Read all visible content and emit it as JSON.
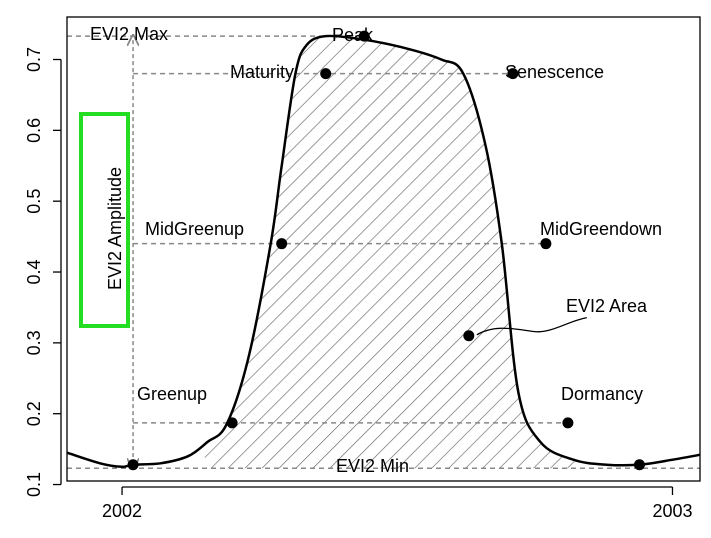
{
  "chart_data": {
    "type": "line",
    "title": "",
    "xlabel": "",
    "ylabel": "",
    "xlim": [
      2001.9,
      2003.05
    ],
    "ylim": [
      0.105,
      0.76
    ],
    "x_ticks": [
      {
        "value": 2002.0,
        "label": "2002"
      },
      {
        "value": 2003.0,
        "label": "2003"
      }
    ],
    "y_ticks": [
      {
        "value": 0.1,
        "label": "0.1"
      },
      {
        "value": 0.2,
        "label": "0.2"
      },
      {
        "value": 0.3,
        "label": "0.3"
      },
      {
        "value": 0.4,
        "label": "0.4"
      },
      {
        "value": 0.5,
        "label": "0.5"
      },
      {
        "value": 0.6,
        "label": "0.6"
      },
      {
        "value": 0.7,
        "label": "0.7"
      }
    ],
    "grid": false,
    "series": [
      {
        "x": [
          2001.9,
          2001.96,
          2002.0,
          2002.02,
          2002.07,
          2002.12,
          2002.155,
          2002.19,
          2002.23,
          2002.27,
          2002.29,
          2002.315,
          2002.335,
          2002.37,
          2002.44,
          2002.52,
          2002.58,
          2002.62,
          2002.66,
          2002.69,
          2002.72,
          2002.76,
          2002.82,
          2002.88,
          2002.94,
          2003.0,
          2003.05
        ],
        "y": [
          0.145,
          0.13,
          0.125,
          0.128,
          0.13,
          0.14,
          0.16,
          0.185,
          0.28,
          0.44,
          0.55,
          0.68,
          0.72,
          0.733,
          0.728,
          0.715,
          0.7,
          0.68,
          0.58,
          0.44,
          0.23,
          0.16,
          0.135,
          0.128,
          0.128,
          0.135,
          0.142
        ]
      }
    ],
    "phenology_points": [
      {
        "name": "Greenup",
        "x": 2002.2,
        "y": 0.187
      },
      {
        "name": "MidGreenup",
        "x": 2002.29,
        "y": 0.44
      },
      {
        "name": "Maturity",
        "x": 2002.37,
        "y": 0.68
      },
      {
        "name": "Peak",
        "x": 2002.44,
        "y": 0.733
      },
      {
        "name": "Senescence",
        "x": 2002.71,
        "y": 0.68
      },
      {
        "name": "MidGreendown",
        "x": 2002.77,
        "y": 0.44
      },
      {
        "name": "Dormancy",
        "x": 2002.81,
        "y": 0.187
      },
      {
        "name": "EVI2 Min point",
        "x": 2002.02,
        "y": 0.128
      },
      {
        "name": "Dormancy end",
        "x": 2002.94,
        "y": 0.128
      }
    ],
    "guide_levels": {
      "max": 0.733,
      "maturity": 0.68,
      "mid": 0.44,
      "greenup": 0.187,
      "min": 0.123
    },
    "area_start_x": 2002.15,
    "area_end_x": 2002.83,
    "area_point": {
      "x": 2002.63,
      "y": 0.31
    },
    "labels": {
      "max": "EVI2 Max",
      "min": "EVI2 Min",
      "amplitude": "EVI2 Amplitude",
      "area": "EVI2 Area",
      "peak": "Peak",
      "maturity": "Maturity",
      "senescence": "Senescence",
      "midgreenup": "MidGreenup",
      "midgreendown": "MidGreendown",
      "greenup": "Greenup",
      "dormancy": "Dormancy"
    },
    "highlight_color": "#22dd22",
    "hatch_color": "#666666",
    "guide_color": "#888888"
  }
}
